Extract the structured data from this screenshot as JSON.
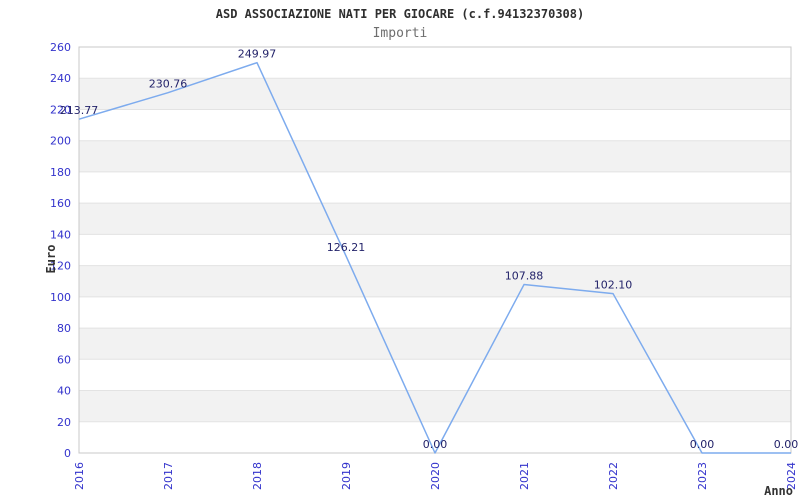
{
  "chart_data": {
    "type": "line",
    "title": "ASD ASSOCIAZIONE NATI PER GIOCARE (c.f.94132370308)",
    "subtitle": "Importi",
    "xlabel": "Anno",
    "ylabel": "Euro",
    "categories": [
      "2016",
      "2017",
      "2018",
      "2019",
      "2020",
      "2021",
      "2022",
      "2023",
      "2024"
    ],
    "values": [
      213.77,
      230.76,
      249.97,
      126.21,
      0.0,
      107.88,
      102.1,
      0.0,
      0.0
    ],
    "point_labels": [
      "213.77",
      "230.76",
      "249.97",
      "126.21",
      "0.00",
      "107.88",
      "102.10",
      "0.00",
      "0.00"
    ],
    "ylim": [
      0,
      260
    ],
    "ytick_step": 20,
    "legend": "none",
    "grid": "horizontal gridlines every 20 with alternating gray bands",
    "colors": {
      "line": "#7dabee",
      "axis_tick_label": "#3333cc",
      "data_label": "#23236a",
      "band_fill": "#f2f2f2",
      "gridline": "#e3e3e3",
      "plot_border": "#c8c8c8",
      "title": "#2f2f2f",
      "subtitle": "#6e6e6e",
      "axis_title": "#333333",
      "background": "#ffffff"
    }
  }
}
